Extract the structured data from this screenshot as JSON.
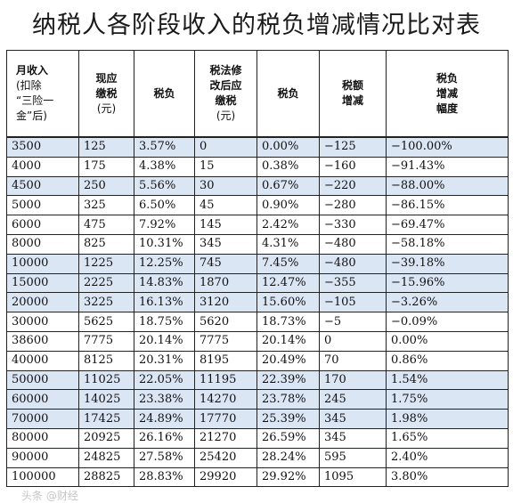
{
  "title": "纳税人各阶段收入的税负增减情况比对表",
  "headers": [
    [
      "月收入",
      "(扣除",
      "“三险一",
      "金”后)"
    ],
    [
      "现应",
      "缴税",
      "(元)"
    ],
    [
      "税负"
    ],
    [
      "税法修",
      "改后应",
      "缴税",
      "(元)"
    ],
    [
      "税负"
    ],
    [
      "税额",
      "增减"
    ],
    [
      "税负",
      "增减",
      "幅度"
    ]
  ],
  "rows": [
    {
      "cells": [
        "3500",
        "125",
        "3.57%",
        "0",
        "0.00%",
        "−125",
        "−100.00%"
      ],
      "shaded": true
    },
    {
      "cells": [
        "4000",
        "175",
        "4.38%",
        "15",
        "0.38%",
        "−160",
        "−91.43%"
      ],
      "shaded": false
    },
    {
      "cells": [
        "4500",
        "250",
        "5.56%",
        "30",
        "0.67%",
        "−220",
        "−88.00%"
      ],
      "shaded": true
    },
    {
      "cells": [
        "5000",
        "325",
        "6.50%",
        "45",
        "0.90%",
        "−280",
        "−86.15%"
      ],
      "shaded": false
    },
    {
      "cells": [
        "6000",
        "475",
        "7.92%",
        "145",
        "2.42%",
        "−330",
        "−69.47%"
      ],
      "shaded": false
    },
    {
      "cells": [
        "8000",
        "825",
        "10.31%",
        "345",
        "4.31%",
        "−480",
        "−58.18%"
      ],
      "shaded": false
    },
    {
      "cells": [
        "10000",
        "1225",
        "12.25%",
        "745",
        "7.45%",
        "−480",
        "−39.18%"
      ],
      "shaded": true
    },
    {
      "cells": [
        "15000",
        "2225",
        "14.83%",
        "1870",
        "12.47%",
        "−355",
        "−15.96%"
      ],
      "shaded": true
    },
    {
      "cells": [
        "20000",
        "3225",
        "16.13%",
        "3120",
        "15.60%",
        "−105",
        "−3.26%"
      ],
      "shaded": true
    },
    {
      "cells": [
        "30000",
        "5625",
        "18.75%",
        "5620",
        "18.73%",
        "−5",
        "−0.09%"
      ],
      "shaded": false
    },
    {
      "cells": [
        "38600",
        "7775",
        "20.14%",
        "7775",
        "20.14%",
        "0",
        "0.00%"
      ],
      "shaded": false
    },
    {
      "cells": [
        "40000",
        "8125",
        "20.31%",
        "8195",
        "20.49%",
        "70",
        "0.86%"
      ],
      "shaded": false
    },
    {
      "cells": [
        "50000",
        "11025",
        "22.05%",
        "11195",
        "22.39%",
        "170",
        "1.54%"
      ],
      "shaded": true
    },
    {
      "cells": [
        "60000",
        "14025",
        "23.38%",
        "14270",
        "23.78%",
        "245",
        "1.75%"
      ],
      "shaded": true
    },
    {
      "cells": [
        "70000",
        "17425",
        "24.89%",
        "17770",
        "25.39%",
        "345",
        "1.98%"
      ],
      "shaded": true
    },
    {
      "cells": [
        "80000",
        "20925",
        "26.16%",
        "21270",
        "26.59%",
        "345",
        "1.65%"
      ],
      "shaded": false
    },
    {
      "cells": [
        "90000",
        "24825",
        "27.58%",
        "25420",
        "28.24%",
        "595",
        "2.40%"
      ],
      "shaded": false
    },
    {
      "cells": [
        "100000",
        "28825",
        "28.83%",
        "29920",
        "29.92%",
        "1095",
        "3.80%"
      ],
      "shaded": false
    }
  ],
  "watermark": "头条 @财经"
}
